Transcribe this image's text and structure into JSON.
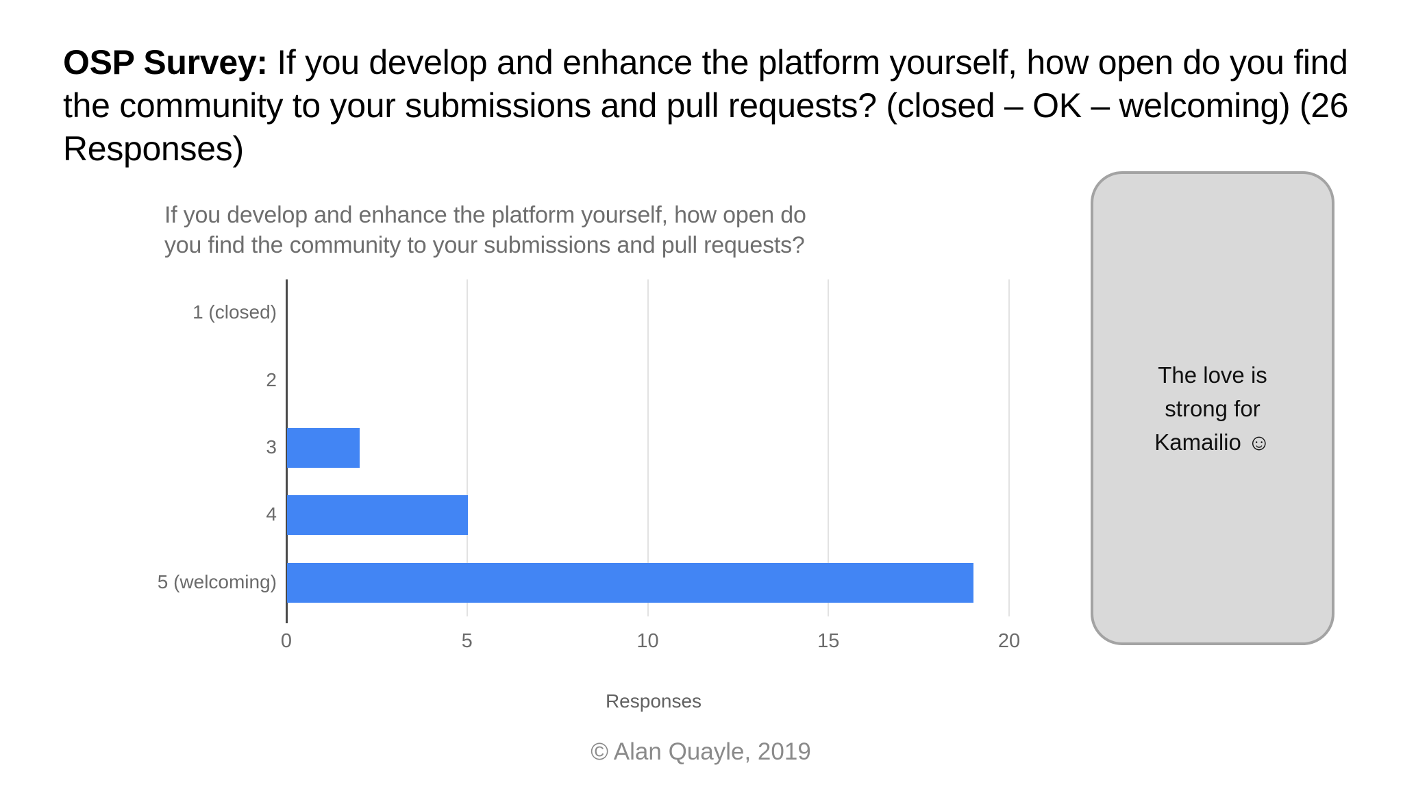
{
  "slide": {
    "title_bold": "OSP Survey:",
    "title_rest": " If you develop and enhance the platform yourself, how open do you find the community to your submissions and pull requests? (closed – OK – welcoming) (26 Responses)",
    "footer": "© Alan Quayle, 2019"
  },
  "callout": {
    "lines": [
      "The love is",
      "strong for",
      "Kamailio ☺"
    ],
    "fill": "#d9d9d9",
    "border_color": "#a3a3a3"
  },
  "chart_data": {
    "type": "bar",
    "orientation": "horizontal",
    "title": "If you develop and enhance the platform yourself, how open do you find the community to your submissions and pull requests?",
    "title_lines": [
      "If you develop and enhance the platform yourself, how open do",
      "you find the community to your submissions and pull requests?"
    ],
    "categories": [
      "1 (closed)",
      "2",
      "3",
      "4",
      "5 (welcoming)"
    ],
    "values": [
      0,
      0,
      2,
      5,
      19
    ],
    "xlabel": "Responses",
    "xlim": [
      0,
      20
    ],
    "xticks": [
      0,
      5,
      10,
      15,
      20
    ],
    "bar_color": "#4285f4",
    "grid": true,
    "legend": false
  }
}
